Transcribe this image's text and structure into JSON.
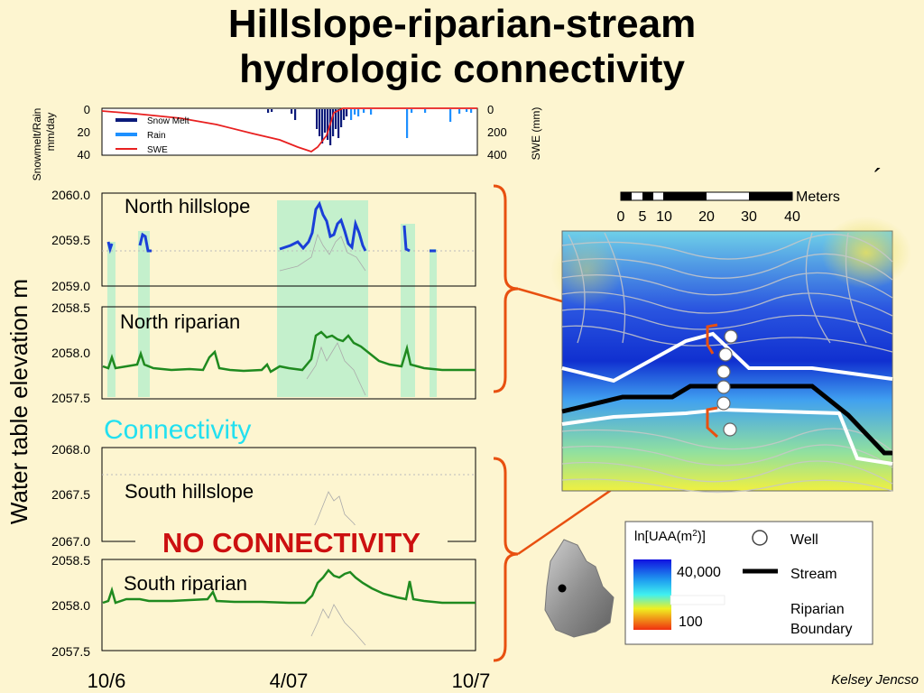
{
  "title_line1": "Hillslope-riparian-stream",
  "title_line2": "hydrologic connectivity",
  "credit": "Kelsey Jencso",
  "colors": {
    "background": "#fdf5d0",
    "connectivity_band": "#c4f0cc",
    "hillslope_line": "#1a3fd8",
    "riparian_line": "#1f8a1f",
    "snowmelt": "#0a1a7a",
    "rain": "#1e90ff",
    "swe": "#e82020",
    "bracket": "#e85010",
    "connectivity_text": "#22e0f0",
    "no_connectivity_text": "#cc1010"
  },
  "precip_panel": {
    "left_axis_label_line1": "Snowmelt/Rain",
    "left_axis_label_line2": "mm/day",
    "right_axis_label": "SWE (mm)",
    "left_ticks": [
      "0",
      "20",
      "40"
    ],
    "right_ticks": [
      "0",
      "200",
      "400"
    ],
    "legend": [
      "Snow Melt",
      "Rain",
      "SWE"
    ]
  },
  "y_axis_title": "Water table elevation m",
  "x_ticks": [
    "10/6",
    "4/07",
    "10/7"
  ],
  "panels": {
    "north_hillslope": {
      "label": "North hillslope",
      "ticks": [
        "2060.0",
        "2059.5",
        "2059.0"
      ]
    },
    "north_riparian": {
      "label": "North riparian",
      "ticks": [
        "2058.5",
        "2058.0",
        "2057.5"
      ]
    },
    "south_hillslope": {
      "label": "South hillslope",
      "ticks": [
        "2068.0",
        "2067.5",
        "2067.0"
      ]
    },
    "south_riparian": {
      "label": "South riparian",
      "ticks": [
        "2058.5",
        "2058.0",
        "2057.5"
      ]
    }
  },
  "connectivity_label": "Connectivity",
  "no_connectivity_label": "NO CONNECTIVITY",
  "scale_bar": {
    "unit": "Meters",
    "ticks": [
      "0",
      "5",
      "10",
      "20",
      "30",
      "40"
    ]
  },
  "map_legend": {
    "title": "ln[UAA(m",
    "title_sup": "2",
    "title_end": ")]",
    "high": "40,000",
    "low": "100",
    "well": "Well",
    "stream": "Stream",
    "riparian_line1": "Riparian",
    "riparian_line2": "Boundary"
  },
  "chart_data": [
    {
      "type": "bar",
      "title": "",
      "ylabel": "Snowmelt/Rain mm/day",
      "ylabel_right": "SWE (mm)",
      "ylim": [
        40,
        0
      ],
      "ylim_right": [
        400,
        0
      ],
      "series": [
        {
          "name": "Snow Melt",
          "approx_peak": 40
        },
        {
          "name": "Rain",
          "approx_peak": 30
        },
        {
          "name": "SWE",
          "approx_peak": 370
        }
      ]
    },
    {
      "type": "line",
      "ylabel": "Water table elevation m",
      "x": [
        "10/6",
        "4/07",
        "10/7"
      ],
      "panels": [
        {
          "name": "North hillslope",
          "ylim": [
            2059.0,
            2060.0
          ]
        },
        {
          "name": "North riparian",
          "ylim": [
            2057.5,
            2058.5
          ]
        },
        {
          "name": "South hillslope",
          "ylim": [
            2067.0,
            2068.0
          ]
        },
        {
          "name": "South riparian",
          "ylim": [
            2057.5,
            2058.5
          ]
        }
      ]
    }
  ]
}
